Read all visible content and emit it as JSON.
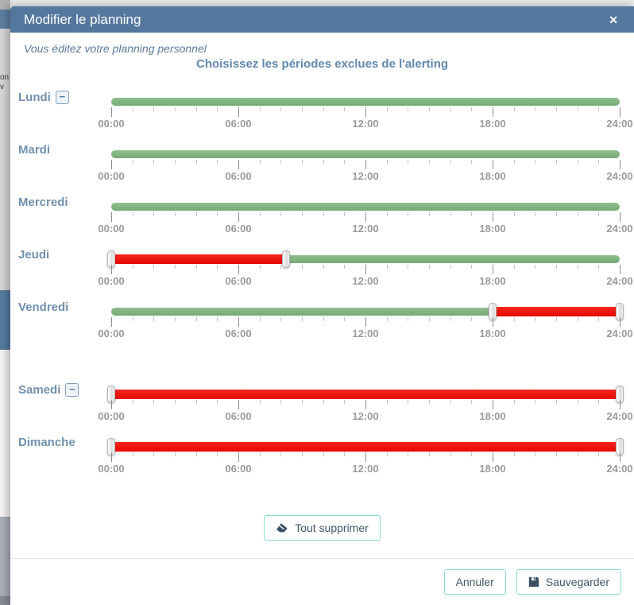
{
  "modal": {
    "title": "Modifier le planning",
    "close_icon": "✕",
    "subtitle": "Vous éditez votre planning personnel",
    "heading": "Choisissez les périodes exclues de l'alerting"
  },
  "glyphs": {
    "minus": "−"
  },
  "colors": {
    "header_bg": "#54779e",
    "included_green": "#7eb77e",
    "excluded_red": "#f60800",
    "button_border_teal": "#8adcca",
    "button_text": "#3f566b",
    "day_label_blue": "#7291af"
  },
  "slider": {
    "hours_total": 24,
    "tick_every_hours": 1,
    "major_tick_every_hours": 6,
    "tick_labels": [
      "00:00",
      "06:00",
      "12:00",
      "18:00",
      "24:00"
    ]
  },
  "days": [
    {
      "label": "Lundi",
      "removable": true,
      "gap_before": false,
      "segments": [
        {
          "from": 0,
          "to": 24,
          "state": "included"
        }
      ],
      "handles": []
    },
    {
      "label": "Mardi",
      "removable": false,
      "gap_before": false,
      "segments": [
        {
          "from": 0,
          "to": 24,
          "state": "included"
        }
      ],
      "handles": []
    },
    {
      "label": "Mercredi",
      "removable": false,
      "gap_before": false,
      "segments": [
        {
          "from": 0,
          "to": 24,
          "state": "included"
        }
      ],
      "handles": []
    },
    {
      "label": "Jeudi",
      "removable": false,
      "gap_before": false,
      "segments": [
        {
          "from": 0,
          "to": 8.25,
          "state": "excluded"
        },
        {
          "from": 8.25,
          "to": 24,
          "state": "included"
        }
      ],
      "handles": [
        0,
        8.25
      ]
    },
    {
      "label": "Vendredi",
      "removable": false,
      "gap_before": false,
      "segments": [
        {
          "from": 0,
          "to": 18,
          "state": "included"
        },
        {
          "from": 18,
          "to": 24,
          "state": "excluded"
        }
      ],
      "handles": [
        18,
        24
      ]
    },
    {
      "label": "Samedi",
      "removable": true,
      "gap_before": true,
      "segments": [
        {
          "from": 0,
          "to": 24,
          "state": "excluded"
        }
      ],
      "handles": [
        0,
        24
      ]
    },
    {
      "label": "Dimanche",
      "removable": false,
      "gap_before": false,
      "segments": [
        {
          "from": 0,
          "to": 24,
          "state": "excluded"
        }
      ],
      "handles": [
        0,
        24
      ]
    }
  ],
  "actions": {
    "clear_all": "Tout supprimer",
    "cancel": "Annuler",
    "save": "Sauvegarder"
  },
  "background_fragments": {
    "a": "on",
    "b": "v"
  }
}
